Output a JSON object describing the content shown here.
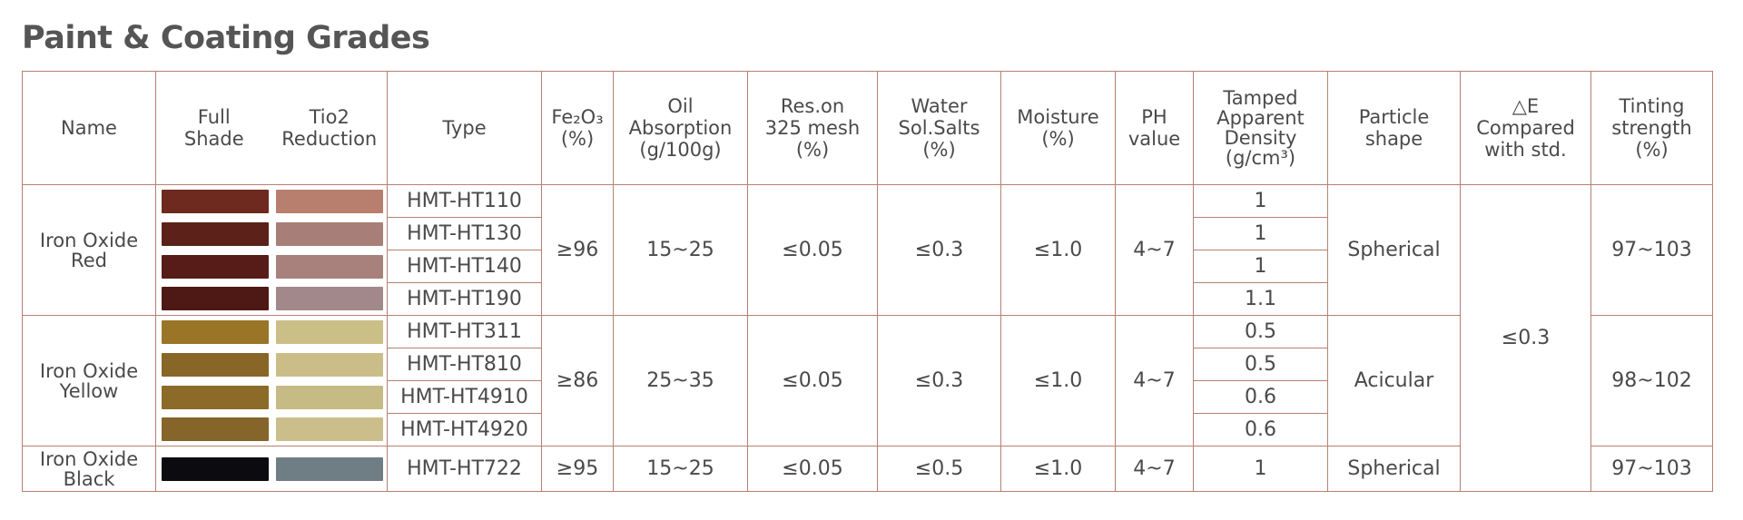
{
  "title": "Paint & Coating Grades",
  "header": {
    "name": "Name",
    "full_shade": "Full\nShade",
    "tio2_reduction": "Tio2\nReduction",
    "type": "Type",
    "fe2o3": "Fe₂O₃\n(%)",
    "oil_absorption": "Oil\nAbsorption\n(g/100g)",
    "res_mesh": "Res.on\n325 mesh\n(%)",
    "water_salts": "Water\nSol.Salts\n(%)",
    "moisture": "Moisture\n(%)",
    "ph": "PH\nvalue",
    "density": "Tamped\nApparent\nDensity\n(g/cm³)",
    "particle": "Particle\nshape",
    "delta_e": "△E\nCompared\nwith std.",
    "tinting": "Tinting\nstrength\n(%)"
  },
  "delta_e_value": "≤0.3",
  "groups": [
    {
      "name": "Iron Oxide\nRed",
      "fe2o3": "≥96",
      "oil": "15~25",
      "res": "≤0.05",
      "water": "≤0.3",
      "moisture": "≤1.0",
      "ph": "4~7",
      "particle": "Spherical",
      "tinting": "97~103",
      "rows": [
        {
          "type": "HMT-HT110",
          "density": "1",
          "full_color": "#6e2a1e",
          "tio2_color": "#b87e6e"
        },
        {
          "type": "HMT-HT130",
          "density": "1",
          "full_color": "#5c2219",
          "tio2_color": "#a87f78"
        },
        {
          "type": "HMT-HT140",
          "density": "1",
          "full_color": "#571c18",
          "tio2_color": "#a8807c"
        },
        {
          "type": "HMT-HT190",
          "density": "1.1",
          "full_color": "#4e1914",
          "tio2_color": "#a2888a"
        }
      ]
    },
    {
      "name": "Iron Oxide\nYellow",
      "fe2o3": "≥86",
      "oil": "25~35",
      "res": "≤0.05",
      "water": "≤0.3",
      "moisture": "≤1.0",
      "ph": "4~7",
      "particle": "Acicular",
      "tinting": "98~102",
      "rows": [
        {
          "type": "HMT-HT311",
          "density": "0.5",
          "full_color": "#9a7527",
          "tio2_color": "#cbbf88"
        },
        {
          "type": "HMT-HT810",
          "density": "0.5",
          "full_color": "#876628",
          "tio2_color": "#cbbd87"
        },
        {
          "type": "HMT-HT4910",
          "density": "0.6",
          "full_color": "#8c6a27",
          "tio2_color": "#c6ba85"
        },
        {
          "type": "HMT-HT4920",
          "density": "0.6",
          "full_color": "#86652a",
          "tio2_color": "#cbbe8a"
        }
      ]
    },
    {
      "name": "Iron Oxide\nBlack",
      "fe2o3": "≥95",
      "oil": "15~25",
      "res": "≤0.05",
      "water": "≤0.5",
      "moisture": "≤1.0",
      "ph": "4~7",
      "particle": "Spherical",
      "tinting": "97~103",
      "rows": [
        {
          "type": "HMT-HT722",
          "density": "1",
          "full_color": "#0c0c10",
          "tio2_color": "#6e7e84"
        }
      ]
    }
  ]
}
